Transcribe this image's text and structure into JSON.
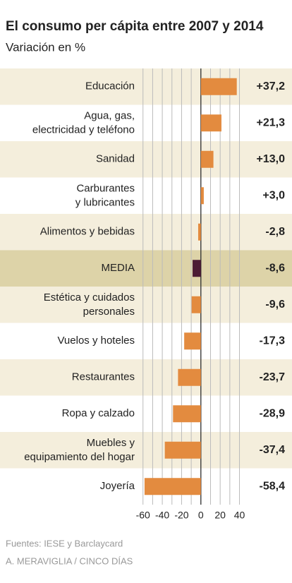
{
  "chart_data": {
    "type": "hbar",
    "title": "El consumo per cápita entre 2007 y 2014",
    "subtitle": "Variación en %",
    "categories": [
      "Educación",
      "Agua, gas,\nelectricidad y teléfono",
      "Sanidad",
      "Carburantes\ny lubricantes",
      "Alimentos y bebidas",
      "MEDIA",
      "Estética y cuidados\npersonales",
      "Vuelos y hoteles",
      "Restaurantes",
      "Ropa y calzado",
      "Muebles y\nequipamiento del hogar",
      "Joyería"
    ],
    "values": [
      37.2,
      21.3,
      13.0,
      3.0,
      -2.8,
      -8.6,
      -9.6,
      -17.3,
      -23.7,
      -28.9,
      -37.4,
      -58.4
    ],
    "value_labels": [
      "+37,2",
      "+21,3",
      "+13,0",
      "+3,0",
      "-2,8",
      "-8,6",
      "-9,6",
      "-17,3",
      "-23,7",
      "-28,9",
      "-37,4",
      "-58,4"
    ],
    "colors": [
      "#e38b3f",
      "#e38b3f",
      "#e38b3f",
      "#e38b3f",
      "#e38b3f",
      "#4b1b35",
      "#e38b3f",
      "#e38b3f",
      "#e38b3f",
      "#e38b3f",
      "#e38b3f",
      "#e38b3f"
    ],
    "xlim": [
      -62,
      44
    ],
    "xticks": [
      -60,
      -40,
      -20,
      0,
      20,
      40
    ],
    "xgrid": [
      -60,
      -50,
      -40,
      -30,
      -20,
      -10,
      0,
      10,
      20,
      30,
      40
    ],
    "notes": [
      "Fuentes: IESE y Barclaycard",
      "A. MERAVIGLIA / CINCO DÍAS"
    ]
  }
}
